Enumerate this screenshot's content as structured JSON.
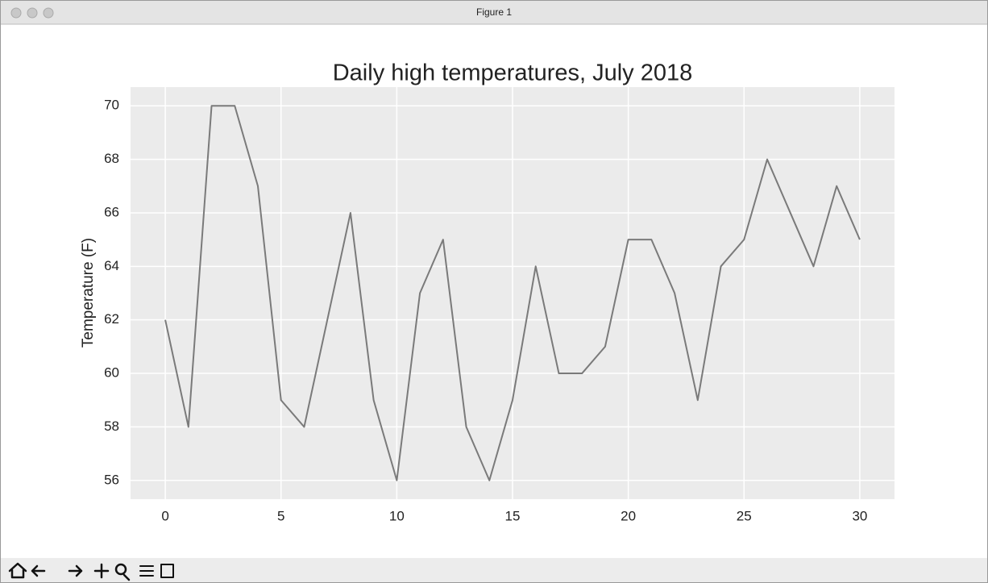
{
  "window": {
    "title": "Figure 1"
  },
  "chart_data": {
    "type": "line",
    "title": "Daily high temperatures, July 2018",
    "y_label": "Temperature (F)",
    "x": [
      0,
      1,
      2,
      3,
      4,
      5,
      6,
      7,
      8,
      9,
      10,
      11,
      12,
      13,
      14,
      15,
      16,
      17,
      18,
      19,
      20,
      21,
      22,
      23,
      24,
      25,
      26,
      27,
      28,
      29,
      30
    ],
    "values": [
      62,
      58,
      70,
      70,
      67,
      59,
      58,
      62,
      66,
      59,
      56,
      63,
      65,
      58,
      56,
      59,
      64,
      60,
      60,
      61,
      65,
      65,
      63,
      59,
      64,
      65,
      68,
      66,
      64,
      67,
      65
    ],
    "color": "#7a7a7a",
    "xlim": [
      -1.5,
      31.5
    ],
    "xticks": [
      0,
      5,
      10,
      15,
      20,
      25,
      30
    ],
    "ylim": [
      55.3,
      70.7
    ],
    "yticks": [
      56,
      58,
      60,
      62,
      64,
      66,
      68,
      70
    ],
    "grid": true
  }
}
